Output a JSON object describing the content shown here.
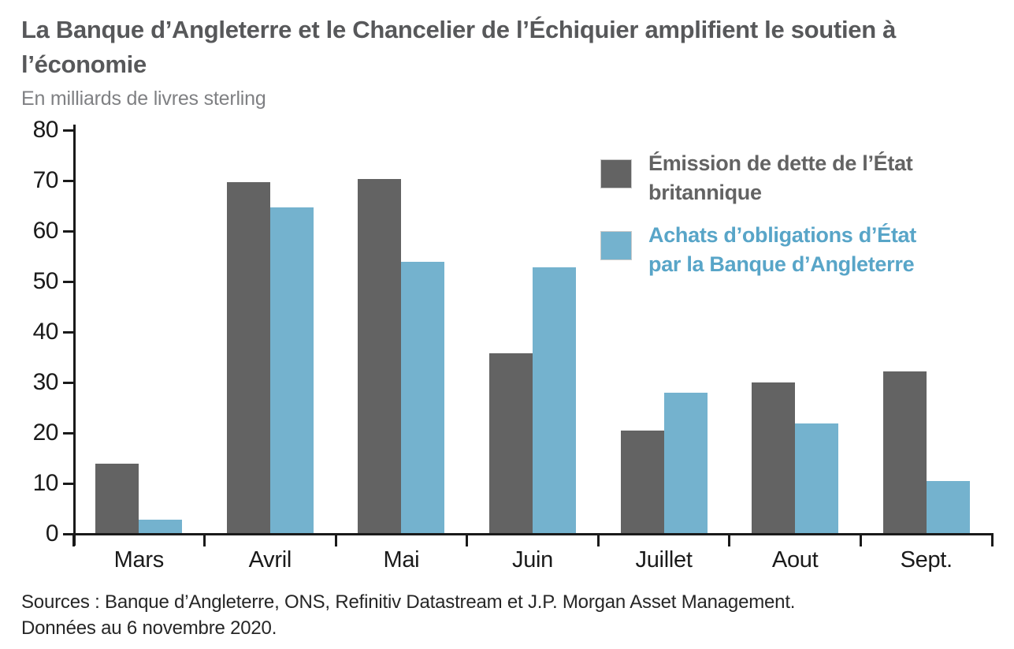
{
  "header": {
    "title": "La Banque d’Angleterre et le Chancelier de l’Échiquier amplifient le soutien à\nl’économie",
    "subtitle": "En milliards de livres sterling"
  },
  "chart_data": {
    "type": "bar",
    "title": "La Banque d’Angleterre et le Chancelier de l’Échiquier amplifient le soutien à l’économie",
    "subtitle": "En milliards de livres sterling",
    "unit": "milliards de livres sterling",
    "categories": [
      "Mars",
      "Avril",
      "Mai",
      "Juin",
      "Juillet",
      "Aout",
      "Sept."
    ],
    "series": [
      {
        "name": "Émission de dette de l’État britannique",
        "color": "#636363",
        "values": [
          14,
          69.9,
          70.5,
          36,
          20.7,
          30.2,
          32.4
        ]
      },
      {
        "name": "Achats d’obligations d’État par la Banque d’Angleterre",
        "color": "#74b2ce",
        "values": [
          2.9,
          64.8,
          54.1,
          53,
          28.1,
          22,
          10.6
        ]
      }
    ],
    "ylim": [
      0,
      80
    ],
    "ytick_step": 10,
    "yticks": [
      0,
      10,
      20,
      30,
      40,
      50,
      60,
      70,
      80
    ],
    "grid": false,
    "legend_position": "top-right",
    "legend": [
      {
        "label": "Émission de dette de l’État\nbritannique",
        "color": "#636363",
        "text_color": "#636363"
      },
      {
        "label": "Achats d’obligations d’État\npar la Banque d’Angleterre",
        "color": "#74b2ce",
        "text_color": "#58a5c8"
      }
    ],
    "axis_color": "#1a1a1a"
  },
  "footer": {
    "source_line1": "Sources : Banque d’Angleterre, ONS, Refinitiv Datastream et J.P. Morgan Asset Management.",
    "source_line2": "Données au 6 novembre 2020."
  }
}
